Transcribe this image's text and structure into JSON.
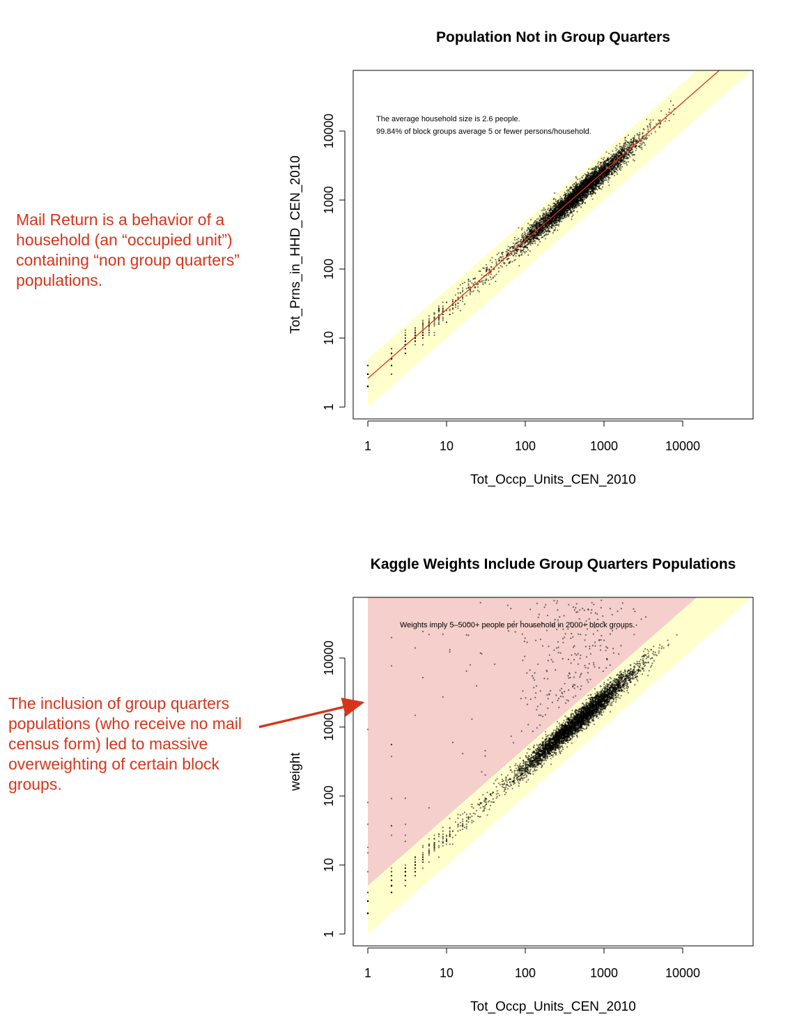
{
  "notes": [
    "Mail Return is a behavior of a household (an “occupied unit”) containing “non group quarters” populations.",
    "The inclusion of group quarters populations (who receive no mail census form) led to massive overweighting of certain block groups."
  ],
  "colors": {
    "note": "#d8341a",
    "band": "#ffffcc",
    "overweight_region": "#f4cfcb",
    "fit_line": "#e0321b",
    "points": "#000000"
  },
  "chart_data": [
    {
      "type": "scatter",
      "title": "Population Not in Group Quarters",
      "xlabel": "Tot_Occp_Units_CEN_2010",
      "ylabel": "Tot_Prns_in_HHD_CEN_2010",
      "xscale": "log",
      "yscale": "log",
      "xlim": [
        0.65,
        78000
      ],
      "ylim": [
        0.68,
        76000
      ],
      "xticks": [
        "1",
        "10",
        "100",
        "1000",
        "10000"
      ],
      "yticks": [
        "1",
        "10",
        "100",
        "1000",
        "10000"
      ],
      "annotations": [
        "The average household size is 2.6 people.",
        "99.84% of block groups average 5 or fewer persons/household."
      ],
      "band_ratio": [
        1,
        5
      ],
      "fit_line_ratio": 2.6,
      "point_cloud": {
        "log10_x_mean": 2.65,
        "log10_x_sd": 0.38,
        "mean_ratio": 2.6,
        "log10_ratio_sd": 0.08,
        "outlier_share": 0
      }
    },
    {
      "type": "scatter",
      "title": "Kaggle Weights Include Group Quarters Populations",
      "xlabel": "Tot_Occp_Units_CEN_2010",
      "ylabel": "weight",
      "xscale": "log",
      "yscale": "log",
      "xlim": [
        0.65,
        78000
      ],
      "ylim": [
        0.68,
        76000
      ],
      "xticks": [
        "1",
        "10",
        "100",
        "1000",
        "10000"
      ],
      "yticks": [
        "1",
        "10",
        "100",
        "1000",
        "10000"
      ],
      "annotations": [
        "Weights imply 5–5000+ people per household in 2000+ block groups."
      ],
      "band_ratio": [
        1,
        5
      ],
      "overweight_region_min_ratio": 5,
      "point_cloud": {
        "log10_x_mean": 2.65,
        "log10_x_sd": 0.38,
        "mean_ratio": 2.6,
        "log10_ratio_sd": 0.08,
        "outlier_share": 0.12
      }
    }
  ]
}
